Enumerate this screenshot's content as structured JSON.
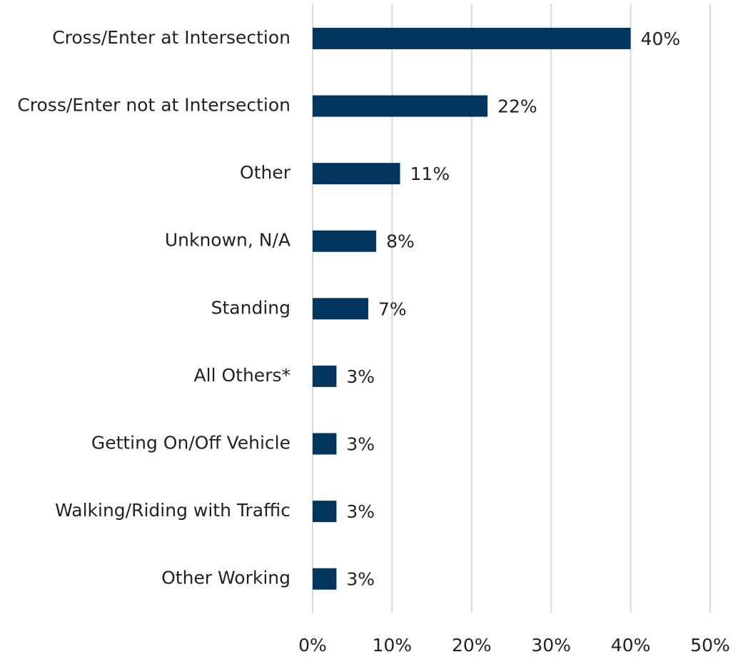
{
  "chart_data": {
    "type": "bar",
    "orientation": "horizontal",
    "categories": [
      "Cross/Enter at Intersection",
      "Cross/Enter not at Intersection",
      "Other",
      "Unknown, N/A",
      "Standing",
      "All Others*",
      "Getting On/Off Vehicle",
      "Walking/Riding with Traffic",
      "Other Working"
    ],
    "values": [
      40,
      22,
      11,
      8,
      7,
      3,
      3,
      3,
      3
    ],
    "value_labels": [
      "40%",
      "22%",
      "11%",
      "8%",
      "7%",
      "3%",
      "3%",
      "3%",
      "3%"
    ],
    "color": "#02365f",
    "xlim": [
      0,
      50
    ],
    "xticks": [
      {
        "value": 0,
        "label": "0%"
      },
      {
        "value": 10,
        "label": "10%"
      },
      {
        "value": 20,
        "label": "20%"
      },
      {
        "value": 30,
        "label": "30%"
      },
      {
        "value": 40,
        "label": "40%"
      },
      {
        "value": 50,
        "label": "50%"
      }
    ],
    "grid": true
  }
}
